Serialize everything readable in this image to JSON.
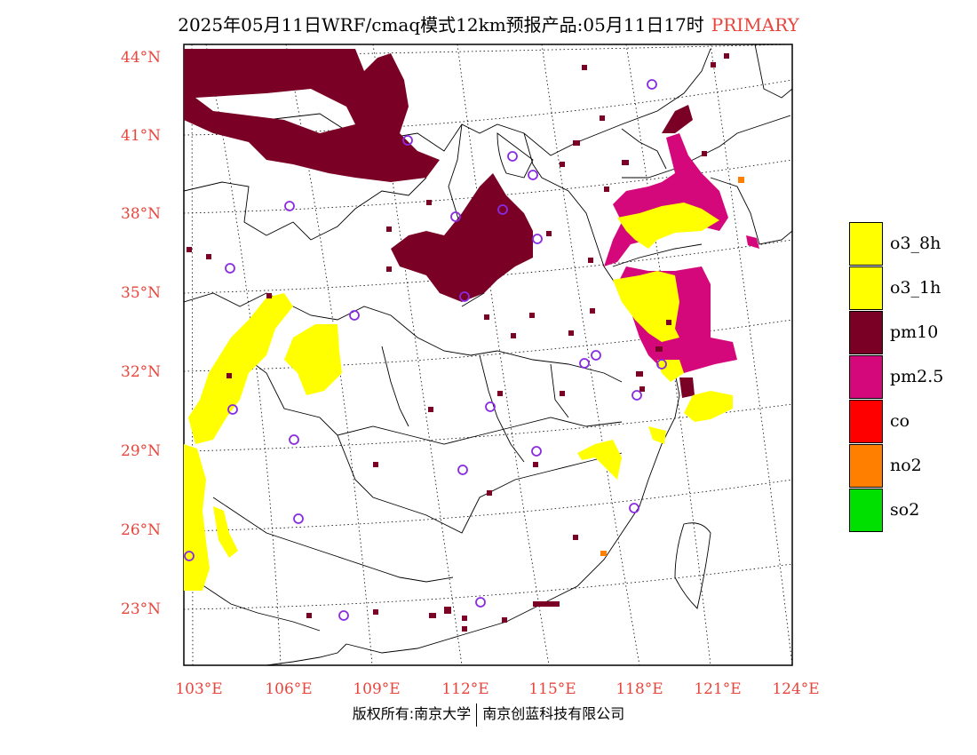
{
  "title": {
    "main": "2025年05月11日WRF/cmaq模式12km预报产品:05月11日17时",
    "tag": "PRIMARY"
  },
  "axes": {
    "lat_labels": [
      "44°N",
      "41°N",
      "38°N",
      "35°N",
      "32°N",
      "29°N",
      "26°N",
      "23°N"
    ],
    "lon_labels": [
      "103°E",
      "106°E",
      "109°E",
      "112°E",
      "115°E",
      "118°E",
      "121°E",
      "124°E"
    ]
  },
  "legend": {
    "items": [
      {
        "label": "o3_8h",
        "color": "#ffff00"
      },
      {
        "label": "o3_1h",
        "color": "#ffff00"
      },
      {
        "label": "pm10",
        "color": "#7a0026"
      },
      {
        "label": "pm2.5",
        "color": "#d4087a"
      },
      {
        "label": "co",
        "color": "#ff0000"
      },
      {
        "label": "no2",
        "color": "#ff8000"
      },
      {
        "label": "so2",
        "color": "#00e000"
      }
    ]
  },
  "footer": {
    "left": "版权所有:南京大学",
    "right": "南京创蓝科技有限公司"
  },
  "colors": {
    "pm10": "#7a0026",
    "pm25": "#d4087a",
    "o3": "#ffff00",
    "no2": "#ff8000",
    "city_marker": "#8a2be2",
    "axis_label": "#e8453c"
  }
}
